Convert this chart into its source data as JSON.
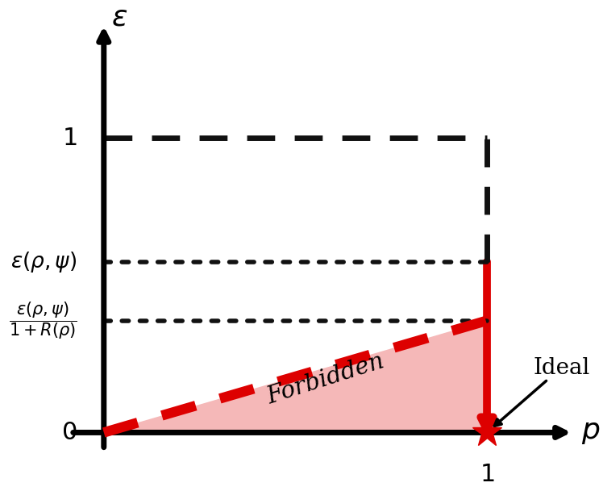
{
  "background_color": "#ffffff",
  "xlim": [
    -0.18,
    1.3
  ],
  "ylim": [
    -0.15,
    1.45
  ],
  "eps_rho_psi": 0.58,
  "eps_over_1pR": 0.38,
  "forbidden_fill_color": "#f5b8b8",
  "forbidden_text": "Forbidden",
  "ideal_text": "Ideal",
  "red_color": "#dd0000",
  "axis_color": "#000000",
  "black_color": "#111111"
}
